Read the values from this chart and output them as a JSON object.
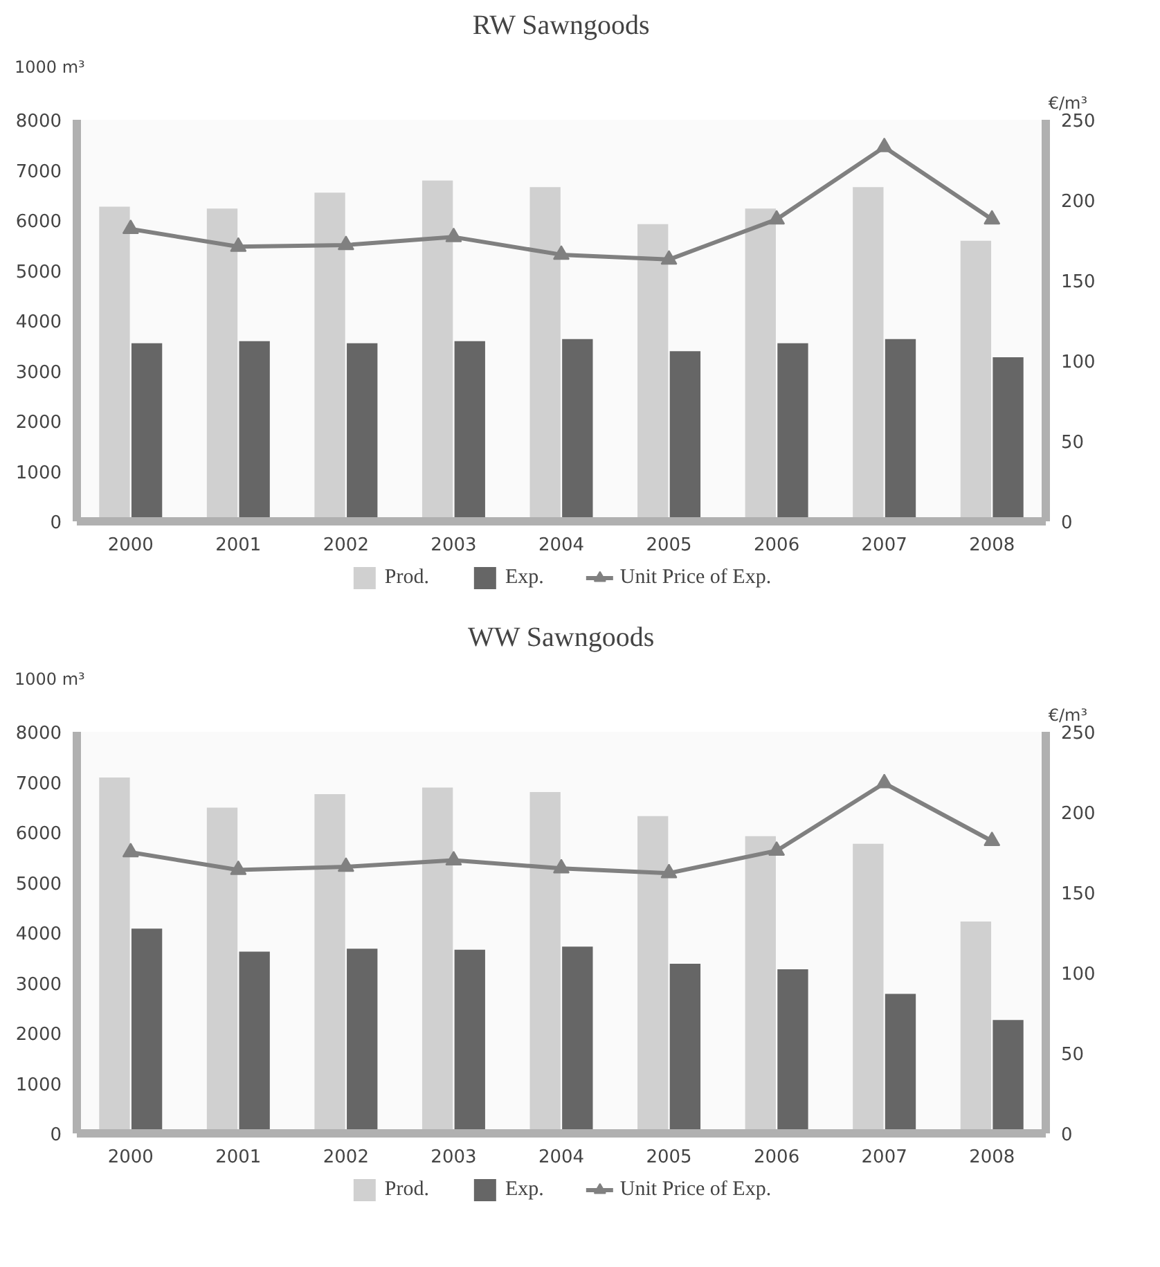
{
  "chart_data": [
    {
      "type": "bar",
      "title": "RW Sawngoods",
      "ylabel": "1000 m³",
      "y2label": "€/m³",
      "categories": [
        "2000",
        "2001",
        "2002",
        "2003",
        "2004",
        "2005",
        "2006",
        "2007",
        "2008"
      ],
      "series": [
        {
          "name": "Prod.",
          "color": "#d0d0d0",
          "values": [
            6270,
            6230,
            6550,
            6790,
            6660,
            5920,
            6230,
            6660,
            5590
          ]
        },
        {
          "name": "Exp.",
          "color": "#666666",
          "values": [
            3550,
            3590,
            3550,
            3590,
            3630,
            3390,
            3550,
            3630,
            3270
          ]
        },
        {
          "name": "Unit Price of Exp.",
          "type": "line",
          "axis": "y2",
          "marker": "triangle",
          "color": "#808080",
          "values": [
            182,
            171,
            172,
            177,
            166,
            163,
            188,
            233,
            188
          ]
        }
      ],
      "ylim": [
        0,
        8000
      ],
      "yticks": [
        0,
        1000,
        2000,
        3000,
        4000,
        5000,
        6000,
        7000,
        8000
      ],
      "y2lim": [
        0,
        250
      ],
      "y2ticks": [
        0,
        50,
        100,
        150,
        200,
        250
      ],
      "legend": "bottom"
    },
    {
      "type": "bar",
      "title": "WW Sawngoods",
      "ylabel": "1000 m³",
      "y2label": "€/m³",
      "categories": [
        "2000",
        "2001",
        "2002",
        "2003",
        "2004",
        "2005",
        "2006",
        "2007",
        "2008"
      ],
      "series": [
        {
          "name": "Prod.",
          "color": "#d0d0d0",
          "values": [
            7090,
            6490,
            6760,
            6890,
            6800,
            6320,
            5920,
            5770,
            4220
          ]
        },
        {
          "name": "Exp.",
          "color": "#666666",
          "values": [
            4080,
            3620,
            3680,
            3660,
            3720,
            3380,
            3270,
            2780,
            2260
          ]
        },
        {
          "name": "Unit Price of Exp.",
          "type": "line",
          "axis": "y2",
          "marker": "triangle",
          "color": "#808080",
          "values": [
            175,
            164,
            166,
            170,
            165,
            162,
            176,
            218,
            182
          ]
        }
      ],
      "ylim": [
        0,
        8000
      ],
      "yticks": [
        0,
        1000,
        2000,
        3000,
        4000,
        5000,
        6000,
        7000,
        8000
      ],
      "y2lim": [
        0,
        250
      ],
      "y2ticks": [
        0,
        50,
        100,
        150,
        200,
        250
      ],
      "legend": "bottom"
    }
  ]
}
